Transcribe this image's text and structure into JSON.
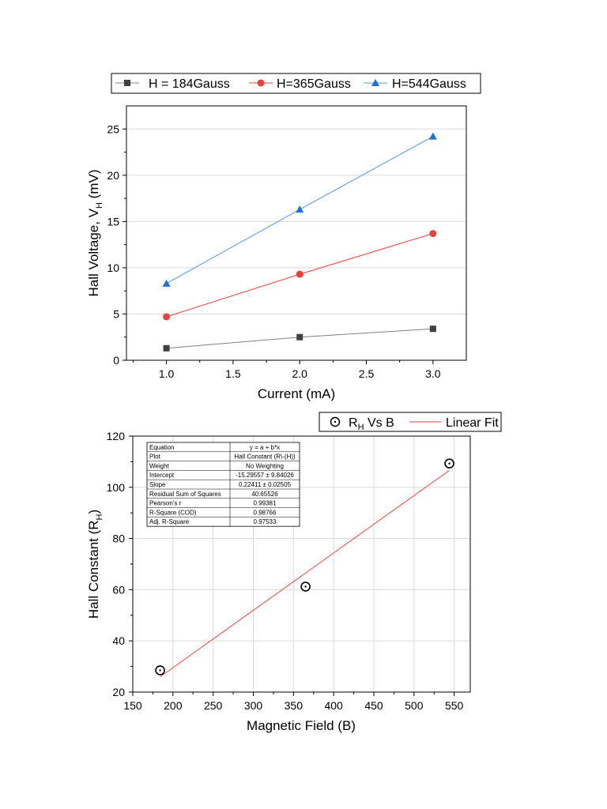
{
  "chart_data": [
    {
      "type": "line",
      "title": "",
      "xlabel": "Current (mA)",
      "ylabel": {
        "main": "Hall Voltage, V",
        "sub": "H",
        "unit": " (mV)"
      },
      "xlim": [
        0.7,
        3.25
      ],
      "ylim": [
        0,
        27.5
      ],
      "xticks": [
        1.0,
        1.5,
        2.0,
        2.5,
        3.0
      ],
      "xtick_labels": [
        "1.0",
        "1.5",
        "2.0",
        "2.5",
        "3.0"
      ],
      "yticks": [
        0,
        5,
        10,
        15,
        20,
        25
      ],
      "ytick_labels": [
        "0",
        "5",
        "10",
        "15",
        "20",
        "25"
      ],
      "grid": true,
      "legend_position": "top",
      "x": [
        1.0,
        2.0,
        3.0
      ],
      "series": [
        {
          "name": "H = 184Gauss",
          "marker": "square",
          "color": "#404040",
          "line_color": "#808080",
          "values": [
            1.3,
            2.5,
            3.4
          ]
        },
        {
          "name": "H=365Gauss",
          "marker": "circle",
          "color": "#e8413e",
          "line_color": "#e8413e",
          "values": [
            4.7,
            9.3,
            13.7
          ]
        },
        {
          "name": "H=544Gauss",
          "marker": "triangle",
          "color": "#1f6fd6",
          "line_color": "#5b93d8",
          "values": [
            8.3,
            16.3,
            24.2
          ]
        }
      ]
    },
    {
      "type": "scatter",
      "title": "",
      "xlabel": "Magnetic Field (B)",
      "ylabel": {
        "main": "Hall Constant (R",
        "sub": "H",
        "unit": ")"
      },
      "xlim": [
        150,
        570
      ],
      "ylim": [
        20,
        120
      ],
      "xticks": [
        150,
        200,
        250,
        300,
        350,
        400,
        450,
        500,
        550
      ],
      "xtick_labels": [
        "150",
        "200",
        "250",
        "300",
        "350",
        "400",
        "450",
        "500",
        "550"
      ],
      "yticks": [
        20,
        40,
        60,
        80,
        100,
        120
      ],
      "ytick_labels": [
        "20",
        "40",
        "60",
        "80",
        "100",
        "120"
      ],
      "grid": true,
      "legend_position": "top-right",
      "points": {
        "name_main": "R",
        "name_sub": "H",
        "name_rest": " Vs B",
        "x": [
          184,
          365,
          544
        ],
        "y": [
          28.5,
          61.2,
          109.3
        ],
        "color": "#000000"
      },
      "fit": {
        "name": "Linear Fit",
        "color": "#e8413e",
        "x": [
          184,
          544
        ],
        "slope": 0.22411,
        "intercept": -15.29557
      },
      "fit_table": [
        [
          "Equation",
          "y = a + b*x"
        ],
        [
          "Plot",
          "Hall Constant (R\\-(H))"
        ],
        [
          "Weight",
          "No Weighting"
        ],
        [
          "Intercept",
          "-15.29557 ± 9.84026"
        ],
        [
          "Slope",
          "0.22411 ± 0.02505"
        ],
        [
          "Residual Sum of Squares",
          "40.65526"
        ],
        [
          "Pearson's r",
          "0.99381"
        ],
        [
          "R-Square (COD)",
          "0.98766"
        ],
        [
          "Adj. R-Square",
          "0.97533"
        ]
      ]
    }
  ]
}
